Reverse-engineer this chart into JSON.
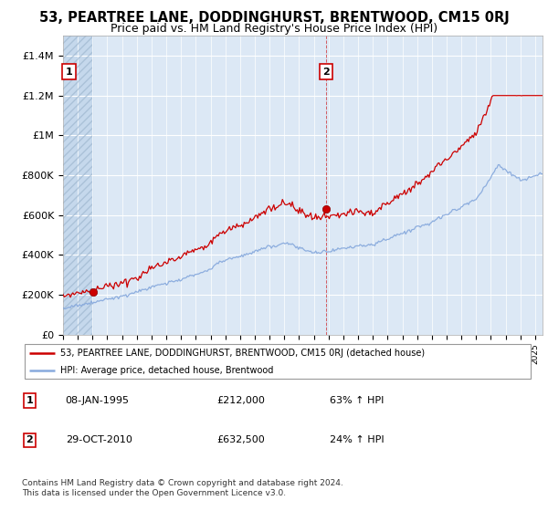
{
  "title": "53, PEARTREE LANE, DODDINGHURST, BRENTWOOD, CM15 0RJ",
  "subtitle": "Price paid vs. HM Land Registry's House Price Index (HPI)",
  "title_fontsize": 10.5,
  "subtitle_fontsize": 9,
  "hpi_color": "#88aadd",
  "price_color": "#cc0000",
  "dot_color": "#cc0000",
  "background_chart": "#dce8f5",
  "hatch_color": "#c5d8ec",
  "grid_color": "#ffffff",
  "ylim": [
    0,
    1500000
  ],
  "yticks": [
    0,
    200000,
    400000,
    600000,
    800000,
    1000000,
    1200000,
    1400000
  ],
  "ytick_labels": [
    "£0",
    "£200K",
    "£400K",
    "£600K",
    "£800K",
    "£1M",
    "£1.2M",
    "£1.4M"
  ],
  "sale1_date": "08-JAN-1995",
  "sale1_price": 212000,
  "sale1_label": "1",
  "sale1_year": 1995.03,
  "sale2_date": "29-OCT-2010",
  "sale2_price": 632500,
  "sale2_label": "2",
  "sale2_year": 2010.82,
  "xmin": 1993.0,
  "xmax": 2025.5,
  "legend_line1": "53, PEARTREE LANE, DODDINGHURST, BRENTWOOD, CM15 0RJ (detached house)",
  "legend_line2": "HPI: Average price, detached house, Brentwood",
  "footer1": "Contains HM Land Registry data © Crown copyright and database right 2024.",
  "footer2": "This data is licensed under the Open Government Licence v3.0.",
  "sale1_pct": "63% ↑ HPI",
  "sale2_pct": "24% ↑ HPI"
}
